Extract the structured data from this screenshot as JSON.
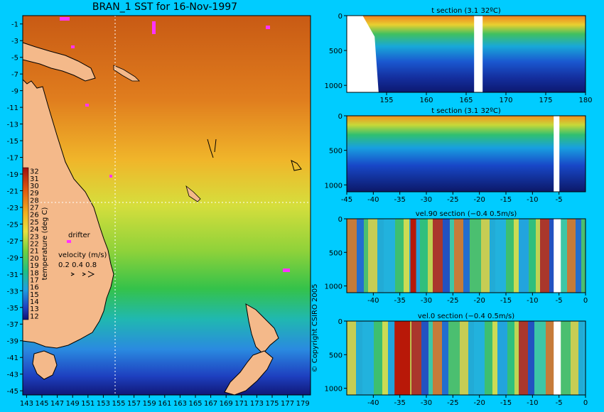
{
  "background_color": "#00ccff",
  "chart_data": [
    {
      "type": "heatmap",
      "title": "BRAN_1 SST for 16-Nov-1997",
      "x_ticks": [
        "143",
        "145",
        "147",
        "149",
        "151",
        "153",
        "155",
        "157",
        "159",
        "161",
        "163",
        "165",
        "167",
        "169",
        "171",
        "173",
        "175",
        "177",
        "179"
      ],
      "y_ticks": [
        "-1",
        "-3",
        "-5",
        "-7",
        "-9",
        "-11",
        "-13",
        "-15",
        "-17",
        "-19",
        "-21",
        "-23",
        "-25",
        "-27",
        "-29",
        "-31",
        "-33",
        "-35",
        "-37",
        "-39",
        "-41",
        "-43",
        "-45"
      ],
      "xlim": [
        142.5,
        180
      ],
      "ylim": [
        -45.5,
        0
      ],
      "colorbar": {
        "label": "temperature (deg C)",
        "ticks": [
          "32",
          "31",
          "30",
          "29",
          "28",
          "27",
          "26",
          "25",
          "24",
          "23",
          "22",
          "21",
          "20",
          "19",
          "18",
          "17",
          "16",
          "15",
          "14",
          "13",
          "12"
        ],
        "range": [
          12,
          32
        ]
      },
      "annotations": {
        "drifter": "drifter",
        "velocity_label": "velocity (m/s)",
        "velocity_scale": "0.2 0.4 0.8"
      },
      "crosshair": {
        "lon": 155,
        "lat": -23
      },
      "land_color": "#f4b98a",
      "copyright": "© Copyright CSIRO 2005"
    },
    {
      "type": "heatmap",
      "title": "t section (3.1      32ºC)",
      "x_ticks": [
        "155",
        "160",
        "165",
        "170",
        "175",
        "180"
      ],
      "xlim": [
        150,
        180
      ],
      "y_ticks": [
        "0",
        "500",
        "1000"
      ],
      "ylim": [
        1100,
        0
      ]
    },
    {
      "type": "heatmap",
      "title": "t section (3.1      32ºC)",
      "x_ticks": [
        "-45",
        "-40",
        "-35",
        "-30",
        "-25",
        "-20",
        "-15",
        "-10",
        "-5"
      ],
      "xlim": [
        -45,
        0
      ],
      "y_ticks": [
        "0",
        "500",
        "1000"
      ],
      "ylim": [
        1100,
        0
      ]
    },
    {
      "type": "heatmap",
      "title": "vel.90 section (−0.4      0.5m/s)",
      "x_ticks": [
        "-40",
        "-35",
        "-30",
        "-25",
        "-20",
        "-15",
        "-10",
        "-5",
        "0"
      ],
      "xlim": [
        -45,
        0
      ],
      "y_ticks": [
        "0",
        "500",
        "1000"
      ],
      "ylim": [
        1100,
        0
      ]
    },
    {
      "type": "heatmap",
      "title": "vel.0 section (−0.4      0.5m/s)",
      "x_ticks": [
        "-40",
        "-35",
        "-30",
        "-25",
        "-20",
        "-15",
        "-10",
        "-5",
        "0"
      ],
      "xlim": [
        -45,
        0
      ],
      "y_ticks": [
        "0",
        "500",
        "1000"
      ],
      "ylim": [
        1100,
        0
      ]
    }
  ]
}
